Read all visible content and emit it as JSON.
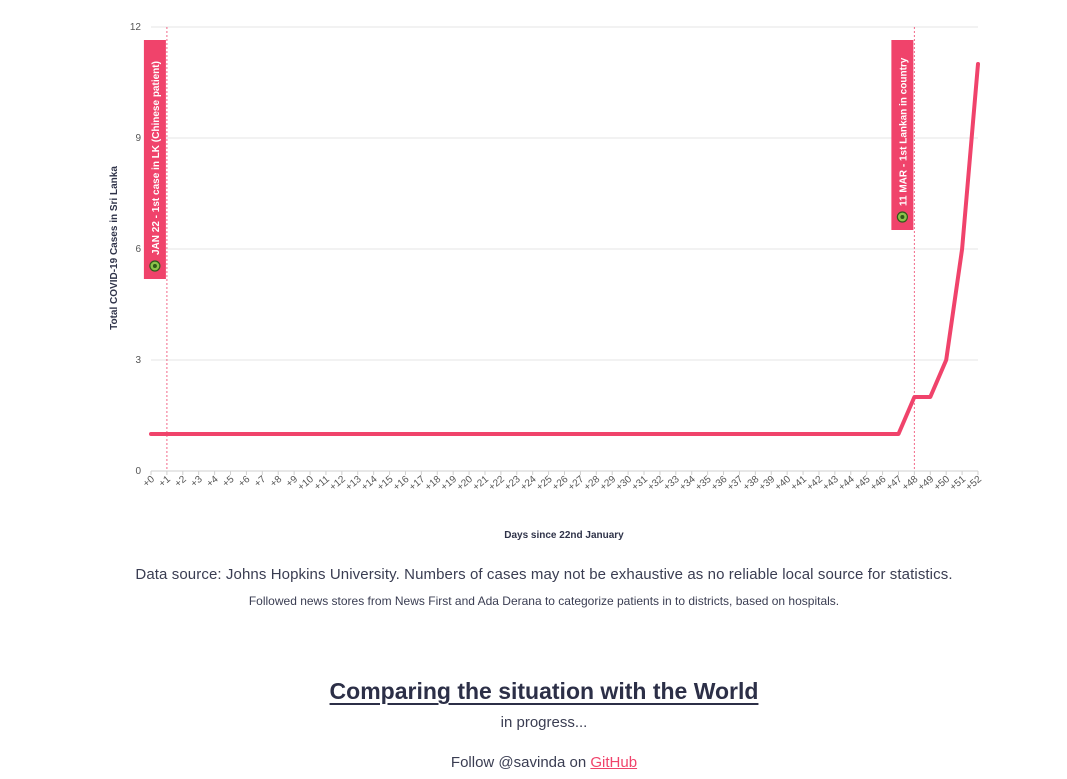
{
  "chart_data": {
    "type": "line",
    "ylabel": "Total COVID-19 Cases in Sri Lanka",
    "xlabel": "Days since 22nd January",
    "ylim": [
      0,
      12
    ],
    "yticks": [
      "0",
      "3",
      "6",
      "9",
      "12"
    ],
    "categories": [
      "+0",
      "+1",
      "+2",
      "+3",
      "+4",
      "+5",
      "+6",
      "+7",
      "+8",
      "+9",
      "+10",
      "+11",
      "+12",
      "+13",
      "+14",
      "+15",
      "+16",
      "+17",
      "+18",
      "+19",
      "+20",
      "+21",
      "+22",
      "+23",
      "+24",
      "+25",
      "+26",
      "+27",
      "+28",
      "+29",
      "+30",
      "+31",
      "+32",
      "+33",
      "+34",
      "+35",
      "+36",
      "+37",
      "+38",
      "+39",
      "+40",
      "+41",
      "+42",
      "+43",
      "+44",
      "+45",
      "+46",
      "+47",
      "+48",
      "+49",
      "+50",
      "+51",
      "+52"
    ],
    "series": [
      {
        "values": [
          1,
          1,
          1,
          1,
          1,
          1,
          1,
          1,
          1,
          1,
          1,
          1,
          1,
          1,
          1,
          1,
          1,
          1,
          1,
          1,
          1,
          1,
          1,
          1,
          1,
          1,
          1,
          1,
          1,
          1,
          1,
          1,
          1,
          1,
          1,
          1,
          1,
          1,
          1,
          1,
          1,
          1,
          1,
          1,
          1,
          1,
          1,
          1,
          2,
          2,
          3,
          6,
          11
        ],
        "color": "#f0436b"
      }
    ],
    "grid": true,
    "annotations": [
      {
        "x": 1,
        "label": "JAN 22 - 1st case in LK (Chinese patient)",
        "icon": "virus-icon",
        "color": "#f0436b"
      },
      {
        "x": 48,
        "label": "11 MAR - 1st Lankan in country",
        "icon": "virus-icon",
        "color": "#f0436b"
      }
    ]
  },
  "source": {
    "main": "Data source: Johns Hopkins University. Numbers of cases may not be exhaustive as no reliable local source for statistics.",
    "sub": "Followed news stores from News First and Ada Derana to categorize patients in to districts, based on hospitals."
  },
  "section": {
    "title": "Comparing the situation with the World",
    "status": "in progress..."
  },
  "footer": {
    "prefix": "Follow @savinda on ",
    "link_label": "GitHub"
  }
}
